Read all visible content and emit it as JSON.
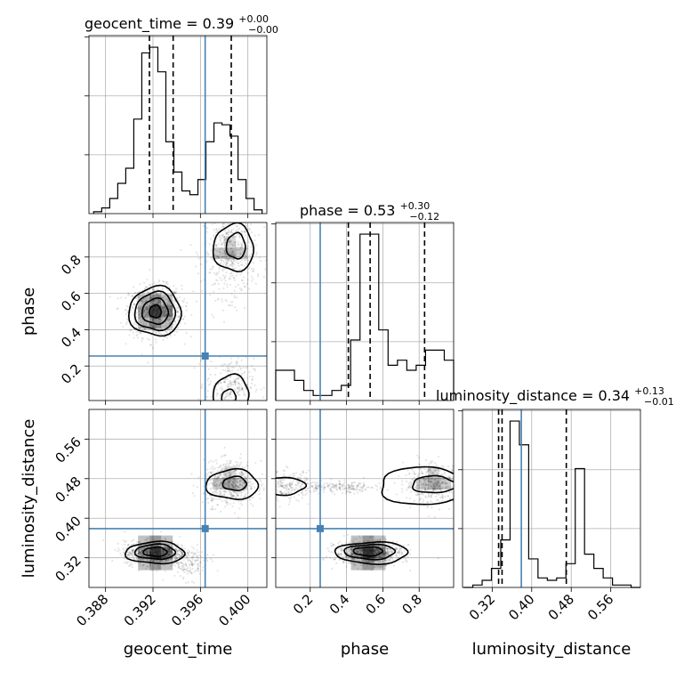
{
  "chart_data": {
    "type": "corner",
    "parameters": [
      {
        "key": "geocent_time",
        "label": "geocent_time",
        "range": [
          0.3866,
          0.4016
        ],
        "ticks": [
          "0.388",
          "0.392",
          "0.396",
          "0.400"
        ],
        "tick_values": [
          0.388,
          0.392,
          0.396,
          0.4
        ],
        "truth": 0.3964,
        "title": {
          "name": "geocent_time",
          "value": "0.39",
          "plus": "+0.00",
          "minus": "−0.00"
        },
        "quantiles": [
          0.3917,
          0.3937,
          0.3986
        ],
        "hist": [
          1,
          3,
          8,
          16,
          24,
          50,
          85,
          88,
          75,
          38,
          22,
          12,
          10,
          18,
          38,
          48,
          47,
          41,
          18,
          8,
          2
        ],
        "hist_range": [
          0.387,
          0.4012
        ],
        "yticks_count": 3
      },
      {
        "key": "phase",
        "label": "phase",
        "range": [
          0.01,
          0.99
        ],
        "ticks": [
          "0.2",
          "0.4",
          "0.6",
          "0.8"
        ],
        "tick_values": [
          0.2,
          0.4,
          0.6,
          0.8
        ],
        "truth": 0.255,
        "title": {
          "name": "phase",
          "value": "0.53",
          "plus": "+0.30",
          "minus": "−0.12"
        },
        "quantiles": [
          0.41,
          0.53,
          0.83
        ],
        "hist": [
          6,
          6,
          4,
          2,
          1,
          1,
          2,
          3,
          12,
          33,
          33,
          14,
          7,
          8,
          6,
          7,
          10,
          10,
          8
        ],
        "hist_range": [
          0.01,
          0.99
        ],
        "yticks_count": 3
      },
      {
        "key": "luminosity_distance",
        "label": "luminosity_distance",
        "range": [
          0.26,
          0.62
        ],
        "ticks": [
          "0.32",
          "0.40",
          "0.48",
          "0.56"
        ],
        "tick_values": [
          0.32,
          0.4,
          0.48,
          0.56
        ],
        "truth": 0.379,
        "title": {
          "name": "luminosity_distance",
          "value": "0.34",
          "plus": "+0.13",
          "minus": "−0.01"
        },
        "quantiles": [
          0.333,
          0.34,
          0.47
        ],
        "hist": [
          0,
          1,
          3,
          8,
          20,
          70,
          60,
          12,
          4,
          3,
          4,
          10,
          50,
          14,
          8,
          4,
          1,
          1,
          0
        ],
        "hist_range": [
          0.262,
          0.62
        ],
        "yticks_count": 3
      }
    ],
    "truth_color": "#4682b4",
    "grid": true
  }
}
